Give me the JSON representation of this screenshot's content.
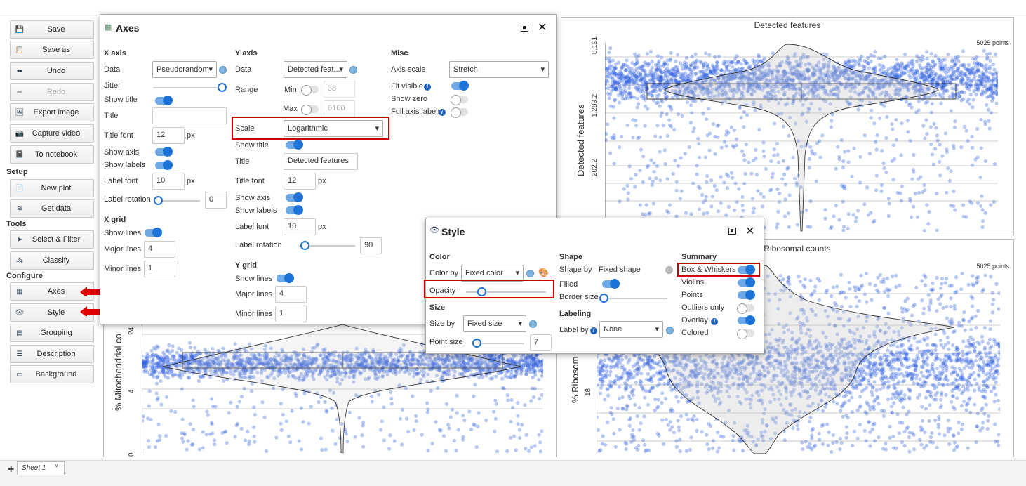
{
  "sidebar": {
    "file_buttons": [
      {
        "label": "Save",
        "icon": "save-icon",
        "disabled": false
      },
      {
        "label": "Save as",
        "icon": "save-as-icon",
        "disabled": false
      },
      {
        "label": "Undo",
        "icon": "undo-icon",
        "disabled": false
      },
      {
        "label": "Redo",
        "icon": "redo-icon",
        "disabled": true
      },
      {
        "label": "Export image",
        "icon": "export-image-icon",
        "disabled": false
      },
      {
        "label": "Capture video",
        "icon": "camera-icon",
        "disabled": false
      },
      {
        "label": "To notebook",
        "icon": "notebook-icon",
        "disabled": false
      }
    ],
    "setup_heading": "Setup",
    "setup_buttons": [
      {
        "label": "New plot",
        "icon": "new-plot-icon"
      },
      {
        "label": "Get data",
        "icon": "database-icon"
      }
    ],
    "tools_heading": "Tools",
    "tools_buttons": [
      {
        "label": "Select & Filter",
        "icon": "cursor-icon"
      },
      {
        "label": "Classify",
        "icon": "classify-icon"
      }
    ],
    "configure_heading": "Configure",
    "configure_buttons": [
      {
        "label": "Axes",
        "icon": "axes-icon"
      },
      {
        "label": "Style",
        "icon": "eye-icon"
      },
      {
        "label": "Grouping",
        "icon": "grouping-icon"
      },
      {
        "label": "Description",
        "icon": "description-icon"
      },
      {
        "label": "Background",
        "icon": "background-icon"
      }
    ]
  },
  "plots": {
    "top_right": {
      "title": "Detected features",
      "points": "5025 points",
      "ylabel": "Detected features",
      "ticks": [
        "8,191",
        "1,289.2",
        "202.2"
      ]
    },
    "bottom_right": {
      "title": "Ribosomal counts",
      "points": "5025 points",
      "ylabel": "% Ribosom",
      "ticks": [
        "18"
      ]
    },
    "bottom_left": {
      "ylabel": "% Mitochondrial co",
      "ticks": [
        "24",
        "4",
        "0"
      ]
    }
  },
  "axes_dialog": {
    "title": "Axes",
    "x_axis": {
      "heading": "X axis",
      "data_label": "Data",
      "data_value": "Pseudorandom",
      "jitter_label": "Jitter",
      "show_title_label": "Show title",
      "title_label": "Title",
      "title_value": "",
      "title_font_label": "Title font",
      "title_font_value": "12",
      "px": "px",
      "show_axis_label": "Show axis",
      "show_labels_label": "Show labels",
      "label_font_label": "Label font",
      "label_font_value": "10",
      "label_rotation_label": "Label rotation",
      "label_rotation_value": "0"
    },
    "x_grid": {
      "heading": "X grid",
      "show_lines_label": "Show lines",
      "major_label": "Major lines",
      "major_value": "4",
      "minor_label": "Minor lines",
      "minor_value": "1"
    },
    "y_axis": {
      "heading": "Y axis",
      "data_label": "Data",
      "data_value": "Detected feat...",
      "range_label": "Range",
      "min_label": "Min",
      "min_value": "38",
      "max_label": "Max",
      "max_value": "6160",
      "scale_label": "Scale",
      "scale_value": "Logarithmic",
      "show_title_label": "Show title",
      "title_label": "Title",
      "title_value": "Detected features",
      "title_font_label": "Title font",
      "title_font_value": "12",
      "px": "px",
      "show_axis_label": "Show axis",
      "show_labels_label": "Show labels",
      "label_font_label": "Label font",
      "label_font_value": "10",
      "label_rotation_label": "Label rotation",
      "label_rotation_value": "90"
    },
    "y_grid": {
      "heading": "Y grid",
      "show_lines_label": "Show lines",
      "major_label": "Major lines",
      "major_value": "4",
      "minor_label": "Minor lines",
      "minor_value": "1"
    },
    "misc": {
      "heading": "Misc",
      "axis_scale_label": "Axis scale",
      "axis_scale_value": "Stretch",
      "fit_visible_label": "Fit visible",
      "show_zero_label": "Show zero",
      "full_axis_labels_label": "Full axis labels"
    }
  },
  "style_dialog": {
    "title": "Style",
    "color": {
      "heading": "Color",
      "color_by_label": "Color by",
      "color_by_value": "Fixed color",
      "opacity_label": "Opacity"
    },
    "size": {
      "heading": "Size",
      "size_by_label": "Size by",
      "size_by_value": "Fixed size",
      "point_size_label": "Point size",
      "point_size_value": "7"
    },
    "shape": {
      "heading": "Shape",
      "shape_by_label": "Shape by",
      "shape_by_value": "Fixed shape",
      "filled_label": "Filled",
      "border_size_label": "Border size"
    },
    "labeling": {
      "heading": "Labeling",
      "label_by_label": "Label by",
      "label_by_value": "None"
    },
    "summary": {
      "heading": "Summary",
      "items": [
        {
          "label": "Box & Whiskers",
          "on": true
        },
        {
          "label": "Violins",
          "on": true
        },
        {
          "label": "Points",
          "on": true
        },
        {
          "label": "Outliers only",
          "on": false
        },
        {
          "label": "Overlay",
          "on": true
        },
        {
          "label": "Colored",
          "on": false
        }
      ]
    }
  },
  "sheet": {
    "tab_label": "Sheet 1"
  },
  "colors": {
    "accent": "#1e73d8",
    "point": "#2f5fe0",
    "highlight": "#cc0000"
  }
}
